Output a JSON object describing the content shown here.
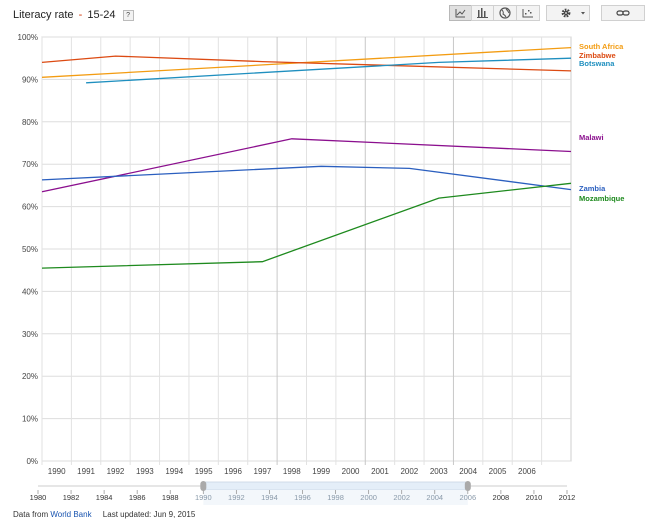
{
  "header": {
    "title": "Literacy rate",
    "separator": "-",
    "subtitle": "15-24",
    "help_label": "?",
    "icons": [
      "line-chart-icon",
      "bar-chart-icon",
      "map-icon",
      "scatter-chart-icon",
      "gear-icon",
      "link-icon"
    ]
  },
  "footer": {
    "source_prefix": "Data from",
    "source_link": "World Bank",
    "last_updated": "Last updated: Jun 9, 2015"
  },
  "timeline": {
    "ticks": [
      "1980",
      "1982",
      "1984",
      "1986",
      "1988",
      "1990",
      "1992",
      "1994",
      "1996",
      "1998",
      "2000",
      "2002",
      "2004",
      "2006",
      "2008",
      "2010",
      "2012"
    ],
    "selected_range": [
      "1990",
      "2006"
    ]
  },
  "chart_data": {
    "type": "line",
    "title": "Literacy rate - 15-24",
    "x": [
      "1990",
      "1991",
      "1992",
      "1993",
      "1994",
      "1995",
      "1996",
      "1997",
      "1998",
      "1999",
      "2000",
      "2001",
      "2002",
      "2003",
      "2004",
      "2005",
      "2006"
    ],
    "y_ticks": [
      "0%",
      "10%",
      "20%",
      "30%",
      "40%",
      "50%",
      "60%",
      "70%",
      "80%",
      "90%",
      "100%"
    ],
    "ylim": [
      0,
      100
    ],
    "grid": true,
    "legend": "end-of-line labels, right",
    "series": [
      {
        "name": "South Africa",
        "color": "#f39c12",
        "points": [
          [
            1989.5,
            90.5
          ],
          [
            2007.5,
            97.5
          ]
        ]
      },
      {
        "name": "Zimbabwe",
        "color": "#dc4a12",
        "points": [
          [
            1989.5,
            94.0
          ],
          [
            1992.0,
            95.5
          ],
          [
            1997.0,
            94.2
          ],
          [
            2007.5,
            92.0
          ]
        ]
      },
      {
        "name": "Botswana",
        "color": "#1f8fbf",
        "points": [
          [
            1991.0,
            89.2
          ],
          [
            2001.0,
            93.2
          ],
          [
            2003.0,
            94.0
          ],
          [
            2007.5,
            95.0
          ]
        ]
      },
      {
        "name": "Malawi",
        "color": "#8b0f8e",
        "points": [
          [
            1989.5,
            63.5
          ],
          [
            1998.0,
            76.0
          ],
          [
            2007.5,
            73.0
          ]
        ]
      },
      {
        "name": "Zambia",
        "color": "#2b5fbf",
        "points": [
          [
            1989.5,
            66.3
          ],
          [
            1999.0,
            69.5
          ],
          [
            2002.0,
            69.0
          ],
          [
            2007.5,
            64.0
          ]
        ]
      },
      {
        "name": "Mozambique",
        "color": "#1e8a1e",
        "points": [
          [
            1989.5,
            45.5
          ],
          [
            1997.0,
            47.0
          ],
          [
            2003.0,
            62.0
          ],
          [
            2007.5,
            65.5
          ]
        ]
      }
    ]
  }
}
